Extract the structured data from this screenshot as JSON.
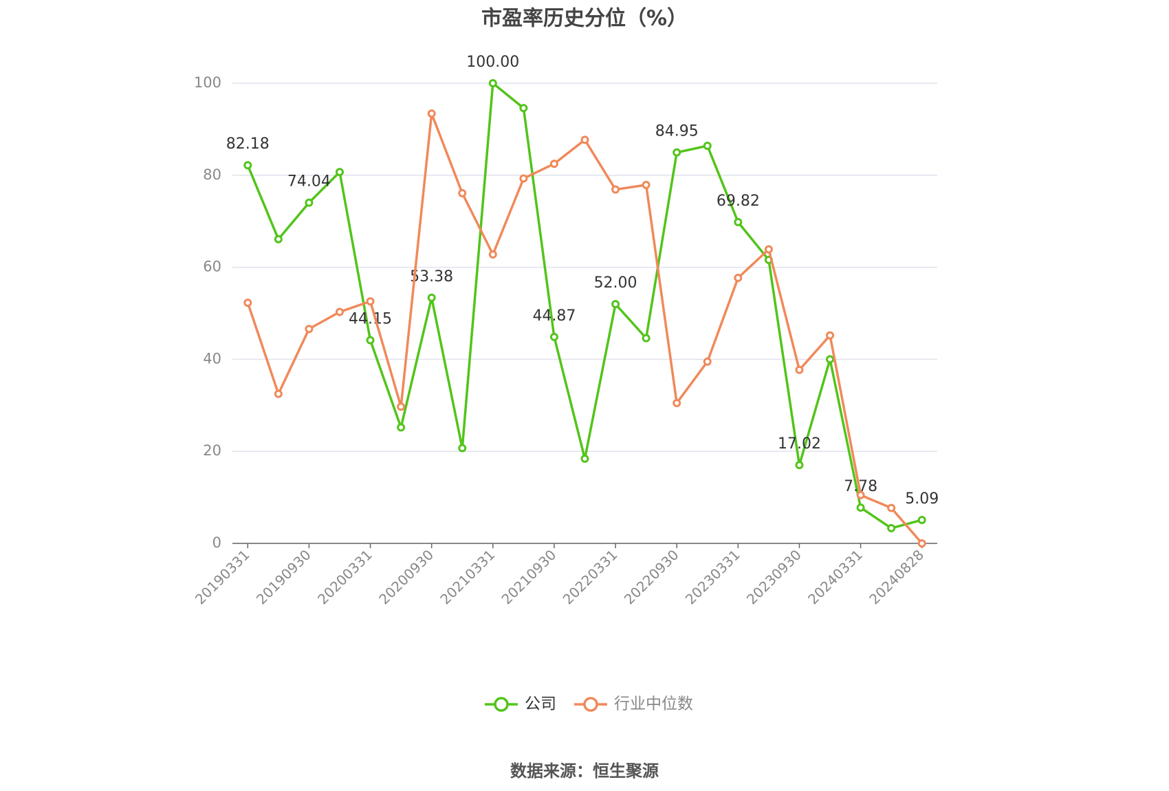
{
  "chart_data": {
    "type": "line",
    "title": "市盈率历史分位（%）",
    "categories": [
      "20190331",
      null,
      "20190930",
      null,
      "20200331",
      null,
      "20200930",
      null,
      "20210331",
      null,
      "20210930",
      null,
      "20220331",
      null,
      "20220930",
      null,
      "20230331",
      null,
      "20230930",
      null,
      "20240331",
      null,
      "20240828"
    ],
    "series": [
      {
        "name": "公司",
        "color": "#52c41a",
        "values": [
          82.18,
          66.1,
          74.04,
          80.7,
          44.15,
          25.2,
          53.38,
          20.7,
          100.0,
          94.6,
          44.87,
          18.4,
          52.0,
          44.6,
          84.95,
          86.4,
          69.82,
          61.6,
          17.02,
          40.0,
          7.78,
          3.3,
          5.09
        ],
        "value_labels": [
          "82.18",
          null,
          "74.04",
          null,
          "44.15",
          null,
          "53.38",
          null,
          "100.00",
          null,
          "44.87",
          null,
          "52.00",
          null,
          "84.95",
          null,
          "69.82",
          null,
          "17.02",
          null,
          "7.78",
          null,
          "5.09"
        ]
      },
      {
        "name": "行业中位数",
        "color": "#f0895a",
        "values": [
          52.3,
          32.5,
          46.6,
          50.3,
          52.6,
          29.7,
          93.4,
          76.1,
          62.8,
          79.3,
          82.5,
          87.7,
          76.9,
          77.9,
          30.5,
          39.5,
          57.7,
          63.9,
          37.7,
          45.2,
          10.5,
          7.7,
          0
        ]
      }
    ],
    "ylim": [
      0,
      100
    ],
    "yticks": [
      0,
      20,
      40,
      60,
      80,
      100
    ],
    "grid": true,
    "source": "数据来源：恒生聚源"
  }
}
